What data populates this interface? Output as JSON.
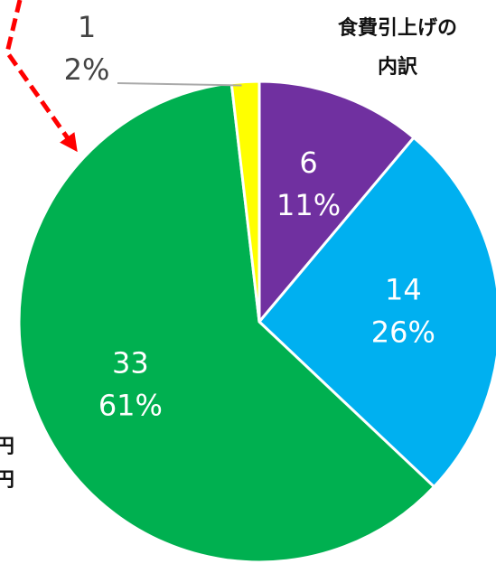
{
  "chart_data": {
    "type": "pie",
    "title_lines": [
      "食費引上げの",
      "内訳"
    ],
    "categories": [
      null,
      null,
      null,
      null
    ],
    "values": [
      6,
      14,
      33,
      1
    ],
    "percent_labels": [
      "11%",
      "26%",
      "61%",
      "2%"
    ],
    "colors": [
      "#7030a0",
      "#00b0f0",
      "#00b050",
      "#ffff00"
    ],
    "annotations": [
      "円",
      "円"
    ]
  }
}
